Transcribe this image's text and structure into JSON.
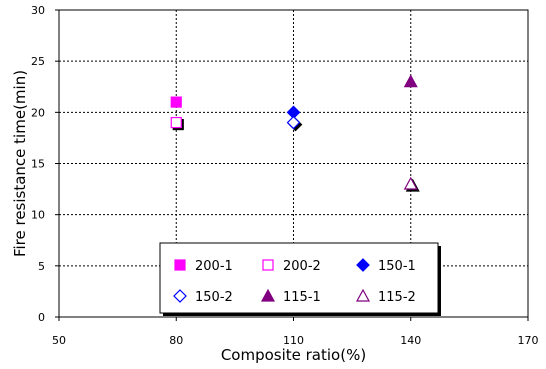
{
  "chart_data": {
    "type": "scatter",
    "title": "",
    "xlabel": "Composite ratio(%)",
    "ylabel": "Fire resistance time(min)",
    "xlim": [
      50,
      170
    ],
    "ylim": [
      0,
      30
    ],
    "xticks": [
      50,
      80,
      110,
      140,
      170
    ],
    "yticks": [
      0,
      5,
      10,
      15,
      20,
      25,
      30
    ],
    "grid": true,
    "legend_position": "bottom-center",
    "series": [
      {
        "name": "200-1",
        "marker": "square",
        "filled": true,
        "color": "#ff00ff",
        "points": [
          {
            "x": 80,
            "y": 21
          }
        ]
      },
      {
        "name": "200-2",
        "marker": "square",
        "filled": false,
        "color": "#ff00ff",
        "points": [
          {
            "x": 80,
            "y": 19
          }
        ]
      },
      {
        "name": "150-1",
        "marker": "diamond",
        "filled": true,
        "color": "#0000ff",
        "points": [
          {
            "x": 110,
            "y": 20
          }
        ]
      },
      {
        "name": "150-2",
        "marker": "diamond",
        "filled": false,
        "color": "#0000ff",
        "points": [
          {
            "x": 110,
            "y": 19
          }
        ]
      },
      {
        "name": "115-1",
        "marker": "triangle",
        "filled": true,
        "color": "#800080",
        "points": [
          {
            "x": 140,
            "y": 23
          }
        ]
      },
      {
        "name": "115-2",
        "marker": "triangle",
        "filled": false,
        "color": "#800080",
        "points": [
          {
            "x": 140,
            "y": 13
          }
        ]
      }
    ]
  }
}
